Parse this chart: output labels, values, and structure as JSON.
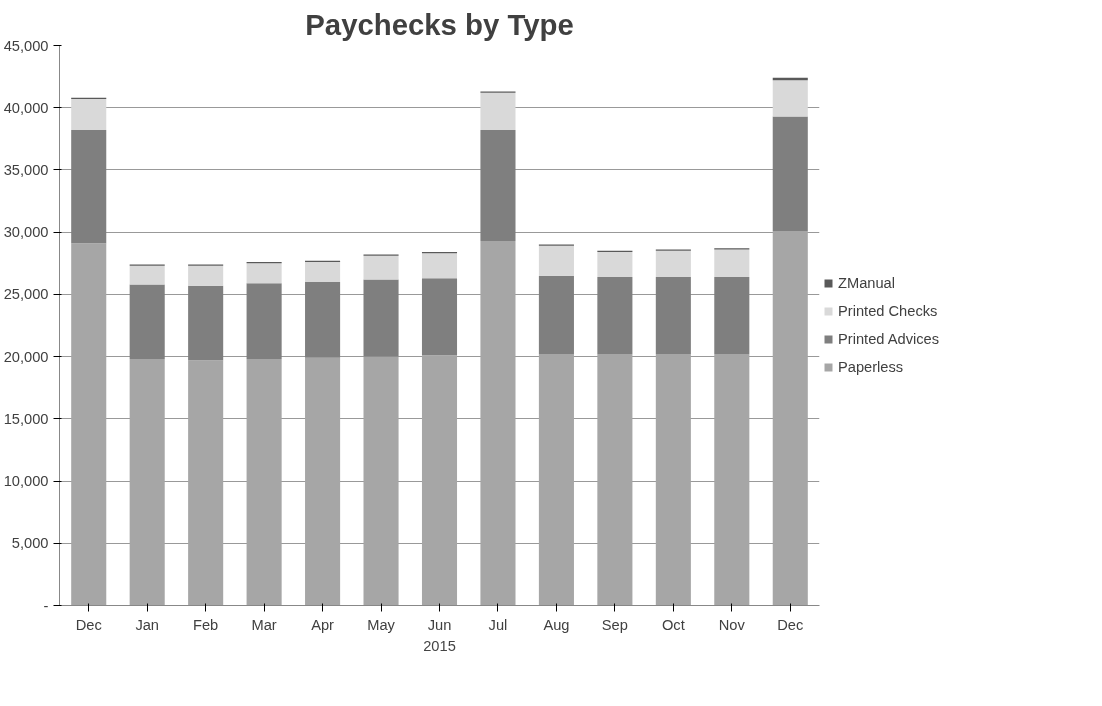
{
  "chart_data": {
    "type": "bar",
    "title": "Paychecks by Type",
    "xlabel": "2015",
    "stacked": true,
    "categories": [
      "Dec",
      "Jan",
      "Feb",
      "Mar",
      "Apr",
      "May",
      "Jun",
      "Jul",
      "Aug",
      "Sep",
      "Oct",
      "Nov",
      "Dec"
    ],
    "series": [
      {
        "name": "Paperless",
        "color": "#a6a6a6",
        "values": [
          29100,
          19800,
          19700,
          19800,
          19900,
          20000,
          20100,
          29300,
          20200,
          20200,
          20200,
          20200,
          30100
        ]
      },
      {
        "name": "Printed Advices",
        "color": "#7f7f7f",
        "values": [
          9100,
          6000,
          6000,
          6100,
          6100,
          6200,
          6200,
          8900,
          6300,
          6200,
          6200,
          6200,
          9200
        ]
      },
      {
        "name": "Printed Checks",
        "color": "#d9d9d9",
        "values": [
          2500,
          1500,
          1600,
          1600,
          1600,
          1900,
          2000,
          3000,
          2400,
          2000,
          2100,
          2200,
          2900
        ]
      },
      {
        "name": "ZManual",
        "color": "#595959",
        "values": [
          100,
          100,
          100,
          100,
          100,
          100,
          100,
          100,
          100,
          100,
          100,
          100,
          200
        ]
      }
    ],
    "ylim": [
      0,
      45000
    ],
    "yticks": [
      {
        "value": 0,
        "label": "-"
      },
      {
        "value": 5000,
        "label": "5,000"
      },
      {
        "value": 10000,
        "label": "10,000"
      },
      {
        "value": 15000,
        "label": "15,000"
      },
      {
        "value": 20000,
        "label": "20,000"
      },
      {
        "value": 25000,
        "label": "25,000"
      },
      {
        "value": 30000,
        "label": "30,000"
      },
      {
        "value": 35000,
        "label": "35,000"
      },
      {
        "value": 40000,
        "label": "40,000"
      },
      {
        "value": 45000,
        "label": "45,000"
      }
    ],
    "grid": "y",
    "legend": "right"
  }
}
